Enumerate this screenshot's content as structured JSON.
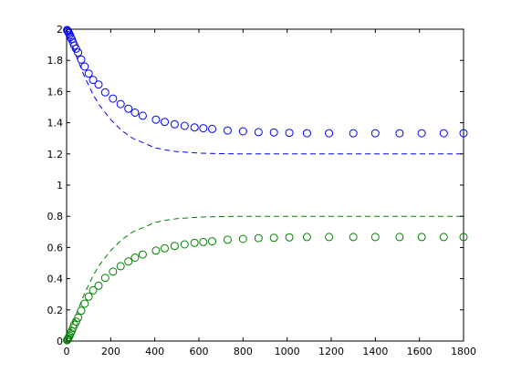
{
  "chart_data": {
    "type": "line",
    "title": "",
    "xlabel": "",
    "ylabel": "",
    "xlim": [
      0,
      1800
    ],
    "ylim": [
      0,
      2
    ],
    "xticks": [
      "0",
      "200",
      "400",
      "600",
      "800",
      "1000",
      "1200",
      "1400",
      "1600",
      "1800"
    ],
    "yticks": [
      "0",
      "0.2",
      "0.4",
      "0.6",
      "0.8",
      "1",
      "1.2",
      "1.4",
      "1.6",
      "1.8",
      "2"
    ],
    "grid": false,
    "legend": "none",
    "series": [
      {
        "style": "dashed",
        "color": "#0000ff",
        "x": [
          0,
          20,
          40,
          60,
          80,
          100,
          120,
          150,
          200,
          250,
          300,
          350,
          400,
          450,
          500,
          600,
          700,
          800,
          1000,
          1200,
          1400,
          1600,
          1800
        ],
        "y": [
          2.0,
          1.92,
          1.84,
          1.77,
          1.7,
          1.64,
          1.58,
          1.51,
          1.42,
          1.35,
          1.3,
          1.27,
          1.24,
          1.225,
          1.215,
          1.205,
          1.202,
          1.2,
          1.2,
          1.2,
          1.2,
          1.2,
          1.2
        ]
      },
      {
        "style": "dashed",
        "color": "#008000",
        "x": [
          0,
          20,
          40,
          60,
          80,
          100,
          120,
          150,
          200,
          250,
          300,
          350,
          400,
          450,
          500,
          600,
          700,
          800,
          1000,
          1200,
          1400,
          1600,
          1800
        ],
        "y": [
          0.0,
          0.08,
          0.16,
          0.23,
          0.3,
          0.36,
          0.42,
          0.49,
          0.58,
          0.65,
          0.7,
          0.73,
          0.76,
          0.775,
          0.785,
          0.795,
          0.798,
          0.8,
          0.8,
          0.8,
          0.8,
          0.8,
          0.8
        ]
      },
      {
        "style": "circles",
        "color": "#0000ff",
        "x": [
          2,
          4,
          7,
          10,
          14,
          18,
          23,
          29,
          35,
          43,
          52,
          66,
          82,
          100,
          120,
          145,
          175,
          210,
          245,
          280,
          310,
          345,
          405,
          445,
          490,
          535,
          580,
          620,
          660,
          730,
          800,
          870,
          940,
          1010,
          1090,
          1190,
          1300,
          1400,
          1510,
          1610,
          1710,
          1800
        ],
        "y": [
          1.995,
          1.99,
          1.985,
          1.975,
          1.965,
          1.95,
          1.935,
          1.915,
          1.895,
          1.875,
          1.85,
          1.805,
          1.76,
          1.715,
          1.675,
          1.645,
          1.595,
          1.555,
          1.52,
          1.49,
          1.465,
          1.445,
          1.42,
          1.405,
          1.39,
          1.38,
          1.37,
          1.365,
          1.36,
          1.35,
          1.345,
          1.34,
          1.338,
          1.335,
          1.333,
          1.333,
          1.333,
          1.333,
          1.333,
          1.333,
          1.333,
          1.333
        ]
      },
      {
        "style": "circles",
        "color": "#008000",
        "x": [
          2,
          4,
          7,
          10,
          14,
          18,
          23,
          29,
          35,
          43,
          52,
          66,
          82,
          100,
          120,
          145,
          175,
          210,
          245,
          280,
          310,
          345,
          405,
          445,
          490,
          535,
          580,
          620,
          660,
          730,
          800,
          870,
          940,
          1010,
          1090,
          1190,
          1300,
          1400,
          1510,
          1610,
          1710,
          1800
        ],
        "y": [
          0.005,
          0.01,
          0.015,
          0.025,
          0.035,
          0.05,
          0.065,
          0.085,
          0.105,
          0.125,
          0.15,
          0.195,
          0.24,
          0.285,
          0.325,
          0.355,
          0.405,
          0.445,
          0.48,
          0.51,
          0.535,
          0.555,
          0.58,
          0.595,
          0.61,
          0.62,
          0.63,
          0.635,
          0.64,
          0.65,
          0.655,
          0.66,
          0.662,
          0.665,
          0.667,
          0.667,
          0.667,
          0.667,
          0.667,
          0.667,
          0.667,
          0.667
        ]
      }
    ]
  }
}
